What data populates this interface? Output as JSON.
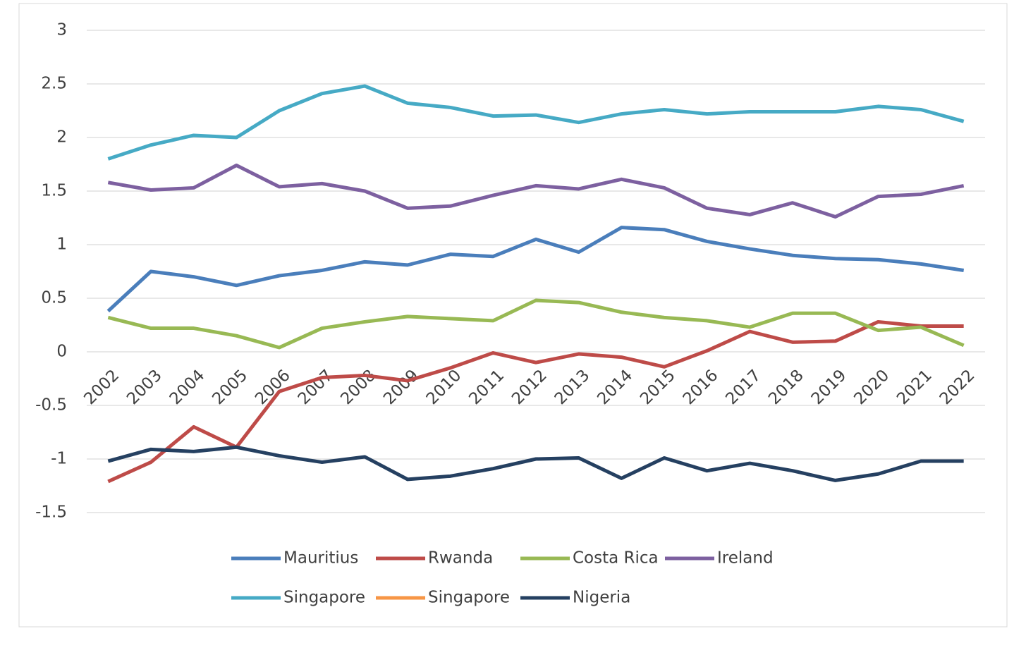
{
  "chart_data": {
    "type": "line",
    "categories": [
      "2002",
      "2003",
      "2004",
      "2005",
      "2006",
      "2007",
      "2008",
      "2009",
      "2010",
      "2011",
      "2012",
      "2013",
      "2014",
      "2015",
      "2016",
      "2017",
      "2018",
      "2019",
      "2020",
      "2021",
      "2022"
    ],
    "ylim": [
      -1.5,
      3
    ],
    "yticks": [
      -1.5,
      -1,
      -0.5,
      0,
      0.5,
      1,
      1.5,
      2,
      2.5,
      3
    ],
    "grid": true,
    "series": [
      {
        "name": "Mauritius",
        "color": "#4a7ebb",
        "values": [
          0.38,
          0.75,
          0.7,
          0.62,
          0.71,
          0.76,
          0.84,
          0.81,
          0.91,
          0.89,
          1.05,
          0.93,
          1.16,
          1.14,
          1.03,
          0.96,
          0.9,
          0.87,
          0.86,
          0.82,
          0.76
        ]
      },
      {
        "name": "Rwanda",
        "color": "#be4b48",
        "values": [
          -1.21,
          -1.03,
          -0.7,
          -0.89,
          -0.37,
          -0.24,
          -0.22,
          -0.27,
          -0.15,
          -0.01,
          -0.1,
          -0.02,
          -0.05,
          -0.14,
          0.01,
          0.19,
          0.09,
          0.1,
          0.28,
          0.24,
          0.24
        ]
      },
      {
        "name": "Costa Rica",
        "color": "#98b954",
        "values": [
          0.32,
          0.22,
          0.22,
          0.15,
          0.04,
          0.22,
          0.28,
          0.33,
          0.31,
          0.29,
          0.48,
          0.46,
          0.37,
          0.32,
          0.29,
          0.23,
          0.36,
          0.36,
          0.2,
          0.23,
          0.06
        ]
      },
      {
        "name": "Ireland",
        "color": "#7d60a0",
        "values": [
          1.58,
          1.51,
          1.53,
          1.74,
          1.54,
          1.57,
          1.5,
          1.34,
          1.36,
          1.46,
          1.55,
          1.52,
          1.61,
          1.53,
          1.34,
          1.28,
          1.39,
          1.26,
          1.45,
          1.47,
          1.55
        ]
      },
      {
        "name": "Singapore",
        "color": "#46aac5",
        "values": [
          1.8,
          1.93,
          2.02,
          2.0,
          2.25,
          2.41,
          2.48,
          2.32,
          2.28,
          2.2,
          2.21,
          2.14,
          2.22,
          2.26,
          2.22,
          2.24,
          2.24,
          2.24,
          2.29,
          2.26,
          2.15
        ]
      },
      {
        "name": "Singapore",
        "color": "#f79646",
        "values": [
          null,
          null,
          null,
          null,
          null,
          null,
          null,
          null,
          null,
          null,
          null,
          null,
          null,
          null,
          null,
          null,
          null,
          null,
          null,
          null,
          null
        ]
      },
      {
        "name": "Nigeria",
        "color": "#254061",
        "values": [
          -1.02,
          -0.91,
          -0.93,
          -0.89,
          -0.97,
          -1.03,
          -0.98,
          -1.19,
          -1.16,
          -1.09,
          -1.0,
          -0.99,
          -1.18,
          -0.99,
          -1.11,
          -1.04,
          -1.11,
          -1.2,
          -1.14,
          -1.02,
          -1.02
        ]
      }
    ]
  }
}
